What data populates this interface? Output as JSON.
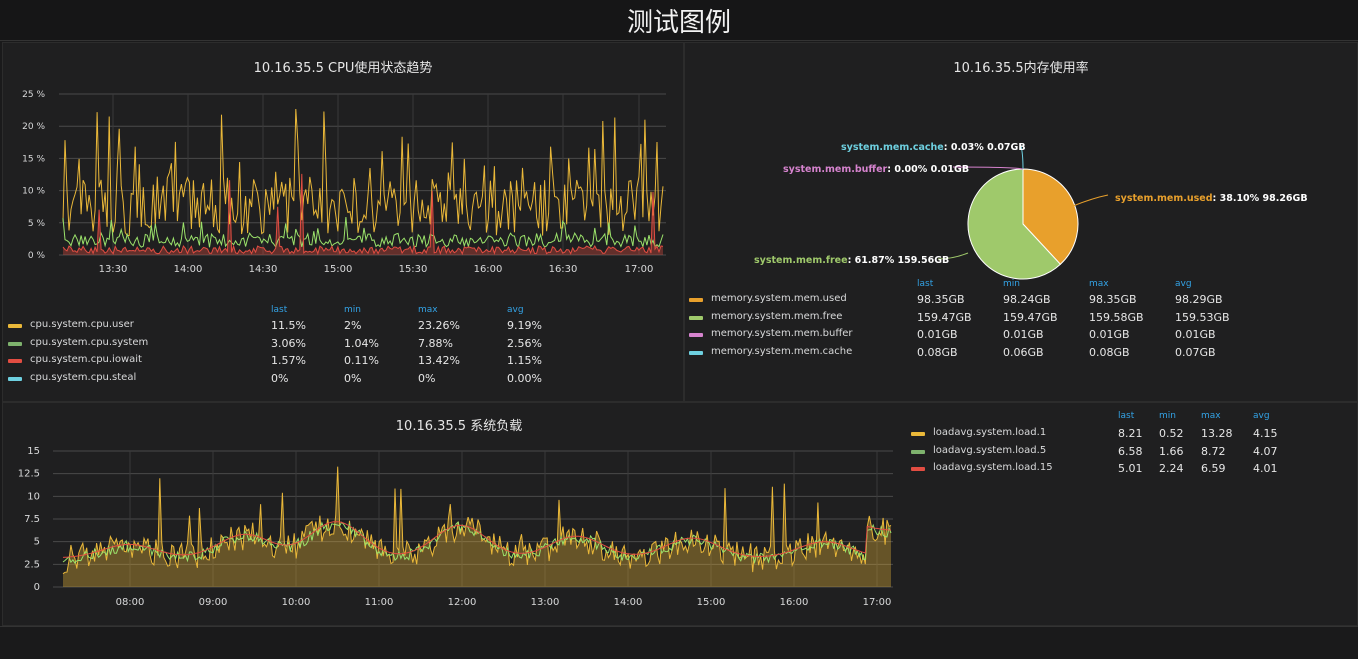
{
  "dashboard": {
    "title": "测试图例"
  },
  "colors": {
    "accent": "#eab839",
    "green": "#7eb26d",
    "red": "#e24d42",
    "cyan": "#6ed0e0",
    "pink": "#d683ce",
    "pie_used": "#e8a02c",
    "pie_free": "#9fc96b",
    "legend_header": "#33a2e5"
  },
  "cpu_panel": {
    "title": "10.16.35.5 CPU使用状态趋势",
    "legend_headers": {
      "last": "last",
      "min": "min",
      "max": "max",
      "avg": "avg"
    },
    "legend": [
      {
        "name": "cpu.system.cpu.user",
        "color": "#eab839",
        "last": "11.5%",
        "min": "2%",
        "max": "23.26%",
        "avg": "9.19%"
      },
      {
        "name": "cpu.system.cpu.system",
        "color": "#7eb26d",
        "last": "3.06%",
        "min": "1.04%",
        "max": "7.88%",
        "avg": "2.56%"
      },
      {
        "name": "cpu.system.cpu.iowait",
        "color": "#e24d42",
        "last": "1.57%",
        "min": "0.11%",
        "max": "13.42%",
        "avg": "1.15%"
      },
      {
        "name": "cpu.system.cpu.steal",
        "color": "#6ed0e0",
        "last": "0%",
        "min": "0%",
        "max": "0%",
        "avg": "0.00%"
      }
    ]
  },
  "mem_panel": {
    "title": "10.16.35.5内存使用率",
    "pie_labels": [
      {
        "name": "system.mem.cache",
        "value": "0.03% 0.07GB",
        "color": "#6ed0e0"
      },
      {
        "name": "system.mem.buffer",
        "value": "0.00% 0.01GB",
        "color": "#d683ce"
      },
      {
        "name": "system.mem.used",
        "value": "38.10% 98.26GB",
        "color": "#e8a02c"
      },
      {
        "name": "system.mem.free",
        "value": "61.87% 159.56GB",
        "color": "#9fc96b"
      }
    ],
    "legend_headers": {
      "last": "last",
      "min": "min",
      "max": "max",
      "avg": "avg"
    },
    "legend": [
      {
        "name": "memory.system.mem.used",
        "color": "#e8a02c",
        "last": "98.35GB",
        "min": "98.24GB",
        "max": "98.35GB",
        "avg": "98.29GB"
      },
      {
        "name": "memory.system.mem.free",
        "color": "#9fc96b",
        "last": "159.47GB",
        "min": "159.47GB",
        "max": "159.58GB",
        "avg": "159.53GB"
      },
      {
        "name": "memory.system.mem.buffer",
        "color": "#d683ce",
        "last": "0.01GB",
        "min": "0.01GB",
        "max": "0.01GB",
        "avg": "0.01GB"
      },
      {
        "name": "memory.system.mem.cache",
        "color": "#6ed0e0",
        "last": "0.08GB",
        "min": "0.06GB",
        "max": "0.08GB",
        "avg": "0.07GB"
      }
    ]
  },
  "load_panel": {
    "title": "10.16.35.5 系统负载",
    "legend_headers": {
      "last": "last",
      "min": "min",
      "max": "max",
      "avg": "avg"
    },
    "legend": [
      {
        "name": "loadavg.system.load.1",
        "color": "#eab839",
        "last": "8.21",
        "min": "0.52",
        "max": "13.28",
        "avg": "4.15"
      },
      {
        "name": "loadavg.system.load.5",
        "color": "#7eb26d",
        "last": "6.58",
        "min": "1.66",
        "max": "8.72",
        "avg": "4.07"
      },
      {
        "name": "loadavg.system.load.15",
        "color": "#e24d42",
        "last": "5.01",
        "min": "2.24",
        "max": "6.59",
        "avg": "4.01"
      }
    ]
  },
  "chart_data": [
    {
      "type": "line",
      "title": "10.16.35.5 CPU使用状态趋势",
      "ylim": [
        0,
        25
      ],
      "y_ticks": [
        "0 %",
        "5 %",
        "10 %",
        "15 %",
        "20 %",
        "25 %"
      ],
      "x_ticks": [
        "13:30",
        "14:00",
        "14:30",
        "15:00",
        "15:30",
        "16:00",
        "16:30",
        "17:00"
      ],
      "grid": true,
      "series": [
        {
          "name": "cpu.system.cpu.user",
          "min": 2,
          "max": 23.26,
          "avg": 9.19,
          "last": 11.5
        },
        {
          "name": "cpu.system.cpu.system",
          "min": 1.04,
          "max": 7.88,
          "avg": 2.56,
          "last": 3.06
        },
        {
          "name": "cpu.system.cpu.iowait",
          "min": 0.11,
          "max": 13.42,
          "avg": 1.15,
          "last": 1.57
        },
        {
          "name": "cpu.system.cpu.steal",
          "min": 0,
          "max": 0,
          "avg": 0,
          "last": 0
        }
      ]
    },
    {
      "type": "pie",
      "title": "10.16.35.5内存使用率",
      "slices": [
        {
          "name": "system.mem.used",
          "percent": 38.1,
          "value_gb": 98.26
        },
        {
          "name": "system.mem.free",
          "percent": 61.87,
          "value_gb": 159.56
        },
        {
          "name": "system.mem.buffer",
          "percent": 0.0,
          "value_gb": 0.01
        },
        {
          "name": "system.mem.cache",
          "percent": 0.03,
          "value_gb": 0.07
        }
      ]
    },
    {
      "type": "area",
      "title": "10.16.35.5 系统负载",
      "ylim": [
        0,
        15
      ],
      "y_ticks": [
        "0",
        "2.5",
        "5",
        "7.5",
        "10",
        "12.5",
        "15"
      ],
      "x_ticks": [
        "08:00",
        "09:00",
        "10:00",
        "11:00",
        "12:00",
        "13:00",
        "14:00",
        "15:00",
        "16:00",
        "17:00"
      ],
      "grid": true,
      "series": [
        {
          "name": "loadavg.system.load.1",
          "min": 0.52,
          "max": 13.28,
          "avg": 4.15,
          "last": 8.21
        },
        {
          "name": "loadavg.system.load.5",
          "min": 1.66,
          "max": 8.72,
          "avg": 4.07,
          "last": 6.58
        },
        {
          "name": "loadavg.system.load.15",
          "min": 2.24,
          "max": 6.59,
          "avg": 4.01,
          "last": 5.01
        }
      ]
    }
  ]
}
